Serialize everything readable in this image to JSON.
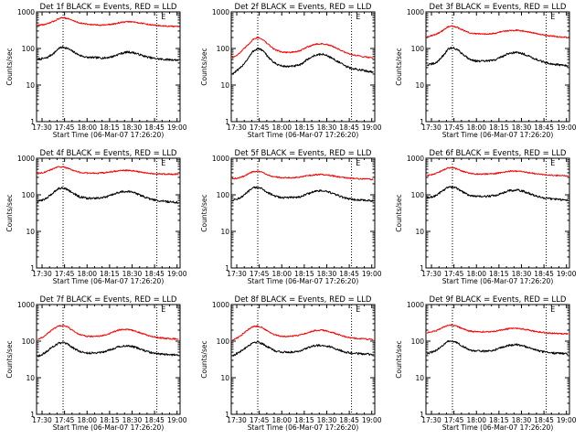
{
  "chart_data": {
    "type": "line",
    "layout": {
      "rows": 3,
      "cols": 3
    },
    "shared": {
      "xlabel": "Start Time (06-Mar-07 17:26:20)",
      "ylabel": "Counts/sec",
      "x_ticks": [
        "17:30",
        "17:45",
        "18:00",
        "18:15",
        "18:30",
        "18:45",
        "19:00"
      ],
      "x_tick_minutes": [
        30,
        45,
        60,
        75,
        90,
        105,
        120
      ],
      "xlim_minutes": [
        26.33,
        122
      ],
      "y_scale": "log",
      "ylim": [
        1,
        1000
      ],
      "y_ticks": [
        "1",
        "10",
        "100",
        "1000"
      ],
      "y_tick_values": [
        1,
        10,
        100,
        1000
      ],
      "vlines_minutes": [
        44,
        106.5
      ],
      "marker_text": "E",
      "marker_minute": 107.5,
      "series_colors": {
        "events": "#000000",
        "lld": "#ff0000"
      }
    },
    "panels": [
      {
        "title": "Det 1f BLACK = Events, RED = LLD",
        "series": [
          {
            "key": "events",
            "x": [
              27,
              33,
              38,
              41,
              44,
              47,
              50,
              55,
              60,
              66,
              72,
              77,
              82,
              87,
              91,
              95,
              99,
              103,
              107,
              112,
              117,
              121
            ],
            "y": [
              50,
              55,
              75,
              100,
              110,
              100,
              85,
              65,
              57,
              56,
              55,
              60,
              72,
              80,
              77,
              68,
              60,
              55,
              52,
              50,
              49,
              48
            ]
          },
          {
            "key": "lld",
            "x": [
              27,
              33,
              38,
              41,
              44,
              47,
              50,
              55,
              60,
              66,
              72,
              77,
              82,
              87,
              91,
              95,
              99,
              103,
              107,
              112,
              117,
              121
            ],
            "y": [
              430,
              460,
              560,
              650,
              700,
              660,
              590,
              500,
              460,
              440,
              440,
              460,
              510,
              540,
              530,
              500,
              470,
              440,
              425,
              410,
              400,
              400
            ]
          }
        ]
      },
      {
        "title": "Det 2f BLACK = Events, RED = LLD",
        "series": [
          {
            "key": "events",
            "x": [
              27,
              32,
              37,
              41,
              44,
              47,
              50,
              55,
              60,
              66,
              72,
              77,
              82,
              87,
              91,
              95,
              99,
              103,
              107,
              112,
              117,
              121
            ],
            "y": [
              20,
              28,
              50,
              85,
              100,
              90,
              65,
              40,
              33,
              32,
              35,
              50,
              65,
              70,
              62,
              50,
              40,
              32,
              28,
              26,
              24,
              23
            ]
          },
          {
            "key": "lld",
            "x": [
              27,
              32,
              37,
              41,
              44,
              47,
              50,
              55,
              60,
              66,
              72,
              77,
              82,
              87,
              91,
              95,
              99,
              103,
              107,
              112,
              117,
              121
            ],
            "y": [
              55,
              75,
              120,
              180,
              200,
              180,
              140,
              95,
              80,
              78,
              85,
              110,
              130,
              135,
              125,
              110,
              90,
              75,
              68,
              62,
              58,
              55
            ]
          }
        ]
      },
      {
        "title": "Det 3f BLACK = Events, RED = LLD",
        "series": [
          {
            "key": "events",
            "x": [
              27,
              33,
              38,
              41,
              44,
              47,
              50,
              55,
              60,
              66,
              72,
              77,
              82,
              87,
              91,
              95,
              99,
              103,
              107,
              112,
              117,
              121
            ],
            "y": [
              35,
              40,
              65,
              95,
              105,
              95,
              75,
              52,
              45,
              45,
              48,
              60,
              75,
              78,
              72,
              62,
              52,
              45,
              40,
              37,
              35,
              33
            ]
          },
          {
            "key": "lld",
            "x": [
              27,
              33,
              38,
              41,
              44,
              47,
              50,
              55,
              60,
              66,
              72,
              77,
              82,
              87,
              91,
              95,
              99,
              103,
              107,
              112,
              117,
              121
            ],
            "y": [
              210,
              240,
              320,
              390,
              410,
              380,
              330,
              270,
              250,
              250,
              260,
              290,
              310,
              315,
              305,
              285,
              260,
              240,
              225,
              215,
              205,
              200
            ]
          }
        ]
      },
      {
        "title": "Det 4f BLACK = Events, RED = LLD",
        "series": [
          {
            "key": "events",
            "x": [
              27,
              33,
              38,
              41,
              44,
              47,
              50,
              55,
              60,
              66,
              72,
              77,
              82,
              87,
              91,
              95,
              99,
              103,
              107,
              112,
              117,
              121
            ],
            "y": [
              65,
              80,
              120,
              150,
              155,
              140,
              115,
              88,
              80,
              80,
              85,
              100,
              120,
              125,
              115,
              100,
              85,
              75,
              70,
              66,
              63,
              62
            ]
          },
          {
            "key": "lld",
            "x": [
              27,
              33,
              38,
              41,
              44,
              47,
              50,
              55,
              60,
              66,
              72,
              77,
              82,
              87,
              91,
              95,
              99,
              103,
              107,
              112,
              117,
              121
            ],
            "y": [
              380,
              430,
              530,
              580,
              580,
              540,
              480,
              410,
              390,
              390,
              400,
              430,
              460,
              465,
              450,
              425,
              400,
              385,
              375,
              370,
              365,
              365
            ]
          }
        ]
      },
      {
        "title": "Det 5f BLACK = Events, RED = LLD",
        "series": [
          {
            "key": "events",
            "x": [
              27,
              33,
              38,
              41,
              44,
              47,
              50,
              55,
              60,
              66,
              72,
              77,
              82,
              87,
              91,
              95,
              99,
              103,
              107,
              112,
              117,
              121
            ],
            "y": [
              70,
              85,
              125,
              155,
              160,
              145,
              120,
              92,
              84,
              84,
              88,
              105,
              125,
              130,
              120,
              105,
              90,
              80,
              75,
              72,
              70,
              68
            ]
          },
          {
            "key": "lld",
            "x": [
              27,
              33,
              38,
              41,
              44,
              47,
              50,
              55,
              60,
              66,
              72,
              77,
              82,
              87,
              91,
              95,
              99,
              103,
              107,
              112,
              117,
              121
            ],
            "y": [
              270,
              300,
              380,
              430,
              440,
              410,
              360,
              310,
              295,
              295,
              305,
              330,
              355,
              360,
              345,
              325,
              305,
              290,
              280,
              275,
              270,
              265
            ]
          }
        ]
      },
      {
        "title": "Det 6f BLACK = Events, RED = LLD",
        "series": [
          {
            "key": "events",
            "x": [
              27,
              33,
              38,
              41,
              44,
              47,
              50,
              55,
              60,
              66,
              72,
              77,
              82,
              87,
              91,
              95,
              99,
              103,
              107,
              112,
              117,
              121
            ],
            "y": [
              80,
              95,
              135,
              160,
              165,
              150,
              125,
              98,
              90,
              90,
              95,
              110,
              130,
              135,
              125,
              110,
              95,
              85,
              80,
              76,
              74,
              72
            ]
          },
          {
            "key": "lld",
            "x": [
              27,
              33,
              38,
              41,
              44,
              47,
              50,
              55,
              60,
              66,
              72,
              77,
              82,
              87,
              91,
              95,
              99,
              103,
              107,
              112,
              117,
              121
            ],
            "y": [
              330,
              380,
              480,
              540,
              550,
              510,
              450,
              390,
              370,
              370,
              380,
              410,
              440,
              445,
              430,
              405,
              380,
              360,
              350,
              340,
              335,
              330
            ]
          }
        ]
      },
      {
        "title": "Det 7f BLACK = Events, RED = LLD",
        "series": [
          {
            "key": "events",
            "x": [
              27,
              32,
              37,
              41,
              44,
              47,
              50,
              55,
              60,
              66,
              72,
              77,
              82,
              87,
              91,
              95,
              99,
              103,
              107,
              112,
              117,
              121
            ],
            "y": [
              38,
              48,
              70,
              88,
              90,
              82,
              68,
              52,
              47,
              48,
              52,
              62,
              72,
              75,
              70,
              62,
              54,
              48,
              45,
              43,
              42,
              42
            ]
          },
          {
            "key": "lld",
            "x": [
              27,
              32,
              37,
              41,
              44,
              47,
              50,
              55,
              60,
              66,
              72,
              77,
              82,
              87,
              91,
              95,
              99,
              103,
              107,
              112,
              117,
              121
            ],
            "y": [
              110,
              140,
              210,
              260,
              270,
              245,
              200,
              150,
              135,
              135,
              145,
              175,
              205,
              210,
              195,
              170,
              150,
              135,
              125,
              120,
              115,
              115
            ]
          }
        ]
      },
      {
        "title": "Det 8f BLACK = Events, RED = LLD",
        "series": [
          {
            "key": "events",
            "x": [
              27,
              32,
              37,
              41,
              44,
              47,
              50,
              55,
              60,
              66,
              72,
              77,
              82,
              87,
              91,
              95,
              99,
              103,
              107,
              112,
              117,
              121
            ],
            "y": [
              40,
              50,
              72,
              92,
              95,
              86,
              72,
              55,
              50,
              50,
              54,
              65,
              75,
              78,
              72,
              64,
              56,
              50,
              47,
              45,
              44,
              43
            ]
          },
          {
            "key": "lld",
            "x": [
              27,
              32,
              37,
              41,
              44,
              47,
              50,
              55,
              60,
              66,
              72,
              77,
              82,
              87,
              91,
              95,
              99,
              103,
              107,
              112,
              117,
              121
            ],
            "y": [
              105,
              135,
              200,
              250,
              260,
              235,
              195,
              150,
              135,
              135,
              145,
              170,
              195,
              200,
              185,
              165,
              145,
              130,
              122,
              117,
              113,
              112
            ]
          }
        ]
      },
      {
        "title": "Det 9f BLACK = Events, RED = LLD",
        "series": [
          {
            "key": "events",
            "x": [
              27,
              33,
              38,
              41,
              44,
              47,
              50,
              55,
              60,
              66,
              72,
              77,
              82,
              87,
              91,
              95,
              99,
              103,
              107,
              112,
              117,
              121
            ],
            "y": [
              45,
              55,
              80,
              97,
              100,
              92,
              76,
              58,
              53,
              53,
              57,
              68,
              78,
              80,
              75,
              66,
              58,
              52,
              49,
              47,
              46,
              45
            ]
          },
          {
            "key": "lld",
            "x": [
              27,
              33,
              38,
              41,
              44,
              47,
              50,
              55,
              60,
              66,
              72,
              77,
              82,
              87,
              91,
              95,
              99,
              103,
              107,
              112,
              117,
              121
            ],
            "y": [
              170,
              190,
              240,
              270,
              275,
              255,
              225,
              190,
              180,
              180,
              185,
              205,
              220,
              225,
              215,
              200,
              185,
              175,
              168,
              163,
              160,
              158
            ]
          }
        ]
      }
    ]
  }
}
